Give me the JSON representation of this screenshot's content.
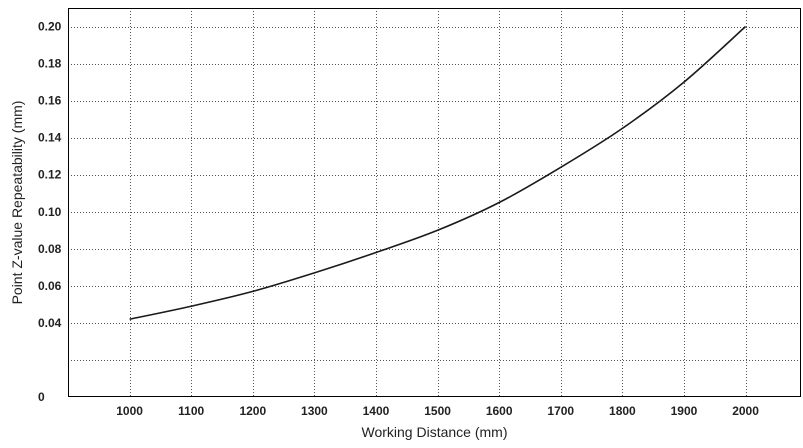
{
  "chart_data": {
    "type": "line",
    "title": "",
    "xlabel": "Working Distance (mm)",
    "ylabel": "Point Z-value Repeatability (mm)",
    "xlim": [
      900,
      2090
    ],
    "ylim": [
      0,
      0.21
    ],
    "x_ticks": [
      1000,
      1100,
      1200,
      1300,
      1400,
      1500,
      1600,
      1700,
      1800,
      1900,
      2000
    ],
    "x_tick_labels": [
      "1000",
      "1100",
      "1200",
      "1300",
      "1400",
      "1500",
      "1600",
      "1700",
      "1800",
      "1900",
      "2000"
    ],
    "y_ticks": [
      0,
      0.04,
      0.06,
      0.08,
      0.1,
      0.12,
      0.14,
      0.16,
      0.18,
      0.2
    ],
    "y_tick_labels": [
      "0",
      "0.04",
      "0.06",
      "0.08",
      "0.10",
      "0.12",
      "0.14",
      "0.16",
      "0.18",
      "0.20"
    ],
    "x_gridlines": [
      1000,
      1100,
      1200,
      1300,
      1400,
      1500,
      1600,
      1700,
      1800,
      1900,
      2000
    ],
    "y_gridlines": [
      0.02,
      0.04,
      0.06,
      0.08,
      0.1,
      0.12,
      0.14,
      0.16,
      0.18,
      0.2
    ],
    "grid": true,
    "grid_style": "dotted",
    "line_color": "#1a1a1a",
    "series": [
      {
        "x": [
          1000,
          1100,
          1200,
          1300,
          1400,
          1500,
          1600,
          1700,
          1800,
          1900,
          2000
        ],
        "y": [
          0.042,
          0.049,
          0.057,
          0.067,
          0.078,
          0.09,
          0.105,
          0.124,
          0.145,
          0.17,
          0.2
        ]
      }
    ]
  }
}
